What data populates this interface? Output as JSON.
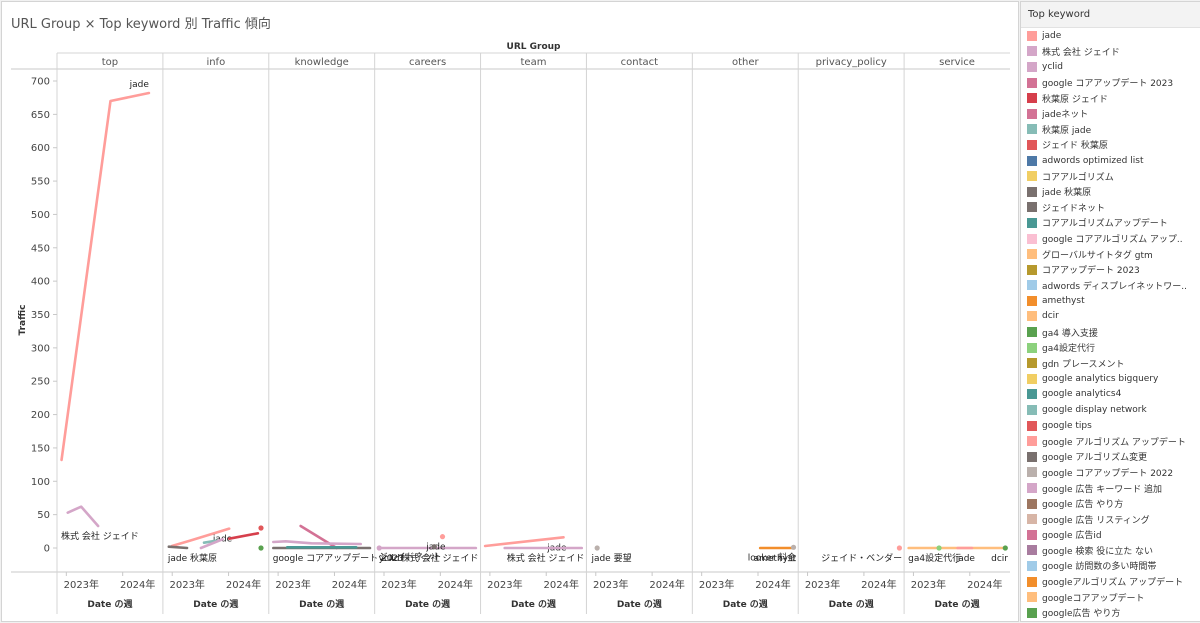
{
  "title": "URL Group × Top keyword 別 Traffic 傾向",
  "legend": {
    "title": "Top keyword",
    "items": [
      {
        "label": "jade",
        "color": "#ff9d9a"
      },
      {
        "label": "株式 会社 ジェイド",
        "color": "#d4a6c8"
      },
      {
        "label": "yclid",
        "color": "#d4a6c8"
      },
      {
        "label": "google コアアップデート 2023",
        "color": "#d37295"
      },
      {
        "label": "秋葉原 ジェイド",
        "color": "#d63f4c"
      },
      {
        "label": "jadeネット",
        "color": "#d37295"
      },
      {
        "label": "秋葉原 jade",
        "color": "#86bcb6"
      },
      {
        "label": "ジェイド 秋葉原",
        "color": "#e15759"
      },
      {
        "label": "adwords optimized list",
        "color": "#4e79a7"
      },
      {
        "label": "コアアルゴリズム",
        "color": "#f1ce63"
      },
      {
        "label": "jade 秋葉原",
        "color": "#79706e"
      },
      {
        "label": "ジェイドネット",
        "color": "#79706e"
      },
      {
        "label": "コアアルゴリズムアップデート",
        "color": "#499894"
      },
      {
        "label": "google コアアルゴリズム アップ..",
        "color": "#fabfd2"
      },
      {
        "label": "グローバルサイトタグ gtm",
        "color": "#ffbe7d"
      },
      {
        "label": "コアアップデート 2023",
        "color": "#b6992d"
      },
      {
        "label": "adwords ディスプレイネットワー..",
        "color": "#a0cbe8"
      },
      {
        "label": "amethyst",
        "color": "#f28e2b"
      },
      {
        "label": "dcir",
        "color": "#ffbe7d"
      },
      {
        "label": "ga4 導入支援",
        "color": "#59a14f"
      },
      {
        "label": "ga4設定代行",
        "color": "#8cd17d"
      },
      {
        "label": "gdn プレースメント",
        "color": "#b6992d"
      },
      {
        "label": "google analytics bigquery",
        "color": "#f1ce63"
      },
      {
        "label": "google analytics4",
        "color": "#499894"
      },
      {
        "label": "google display network",
        "color": "#86bcb6"
      },
      {
        "label": "google tips",
        "color": "#e15759"
      },
      {
        "label": "google アルゴリズム アップデート",
        "color": "#ff9d9a"
      },
      {
        "label": "google アルゴリズム変更",
        "color": "#79706e"
      },
      {
        "label": "google コアアップデート 2022",
        "color": "#bab0ac"
      },
      {
        "label": "google 広告 キーワード 追加",
        "color": "#d4a6c8"
      },
      {
        "label": "google 広告 やり方",
        "color": "#9d7660"
      },
      {
        "label": "google 広告 リスティング",
        "color": "#d7b5a6"
      },
      {
        "label": "google 広告id",
        "color": "#d37295"
      },
      {
        "label": "google 検索 役に立た ない",
        "color": "#a87c9f"
      },
      {
        "label": "google 訪問数の多い時間帯",
        "color": "#a0cbe8"
      },
      {
        "label": "googleアルゴリズム アップデート",
        "color": "#f28e2b"
      },
      {
        "label": "googleコアアップデート",
        "color": "#ffbe7d"
      },
      {
        "label": "google広告 やり方",
        "color": "#59a14f"
      }
    ]
  },
  "chart_data": {
    "type": "line",
    "title": "URL Group × Top keyword 別 Traffic 傾向",
    "column_header": "URL Group",
    "xlabel": "Date の週",
    "ylabel": "Traffic",
    "ylim": [
      0,
      720
    ],
    "yticks": [
      0,
      50,
      100,
      150,
      200,
      250,
      300,
      350,
      400,
      450,
      500,
      550,
      600,
      650,
      700
    ],
    "xticks": [
      {
        "label": "2023年",
        "value": "2023-01-01"
      },
      {
        "label": "2024年",
        "value": "2024-01-01"
      }
    ],
    "xlim": [
      "2022-11-21",
      "2024-08-29"
    ],
    "grid": "vertical panel dividers, no horizontal gridlines",
    "panels": [
      {
        "name": "top",
        "series": [
          {
            "keyword": "jade",
            "color": "#ff9d9a",
            "points": [
              [
                "2022-12-01",
                132
              ],
              [
                "2023-10-14",
                670
              ],
              [
                "2024-06-19",
                682
              ]
            ],
            "label": "jade"
          },
          {
            "keyword": "株式 会社 ジェイド",
            "color": "#d4a6c8",
            "points": [
              [
                "2023-01-10",
                53
              ],
              [
                "2023-04-07",
                62
              ],
              [
                "2023-07-26",
                33
              ]
            ],
            "label": "株式 会社 ジェイド"
          }
        ]
      },
      {
        "name": "info",
        "series": [
          {
            "keyword": "jade",
            "color": "#ff9d9a",
            "points": [
              [
                "2022-12-30",
                3
              ],
              [
                "2023-04-27",
                11
              ],
              [
                "2024-01-05",
                29
              ]
            ],
            "label": "jade"
          },
          {
            "keyword": "jade 秋葉原",
            "color": "#79706e",
            "points": [
              [
                "2022-12-10",
                2
              ],
              [
                "2023-04-07",
                0
              ]
            ],
            "label": "jade 秋葉原"
          },
          {
            "keyword": "秋葉原 jade",
            "color": "#86bcb6",
            "points": [
              [
                "2023-07-26",
                8
              ],
              [
                "2023-10-14",
                11
              ]
            ]
          },
          {
            "keyword": "google 広告 キーワード 追加",
            "color": "#d4a6c8",
            "points": [
              [
                "2023-07-06",
                0
              ],
              [
                "2023-11-23",
                13
              ]
            ]
          },
          {
            "keyword": "秋葉原 ジェイド",
            "color": "#d63f4c",
            "points": [
              [
                "2024-01-05",
                14
              ],
              [
                "2024-07-09",
                22
              ]
            ]
          },
          {
            "keyword": "google tips",
            "color": "#e15759",
            "points": [
              [
                "2024-07-29",
                30
              ]
            ]
          },
          {
            "keyword": "ga4 導入支援",
            "color": "#59a14f",
            "points": [
              [
                "2024-07-29",
                0
              ]
            ]
          }
        ]
      },
      {
        "name": "knowledge",
        "series": [
          {
            "keyword": "google コアアップデート 2023",
            "color": "#d37295",
            "points": [
              [
                "2023-05-27",
                33
              ],
              [
                "2024-01-15",
                0
              ]
            ],
            "label": "google コアアップデート 2023"
          },
          {
            "keyword": "google 広告 キーワード 追加",
            "color": "#d4a6c8",
            "points": [
              [
                "2022-12-01",
                9
              ],
              [
                "2023-02-19",
                10
              ],
              [
                "2023-08-05",
                7
              ],
              [
                "2024-06-19",
                6
              ]
            ]
          },
          {
            "keyword": "google アルゴリズム変更",
            "color": "#79706e",
            "points": [
              [
                "2022-12-01",
                0
              ],
              [
                "2024-08-18",
                0
              ]
            ]
          },
          {
            "keyword": "google analytics4",
            "color": "#499894",
            "points": [
              [
                "2023-03-01",
                1
              ],
              [
                "2024-05-21",
                1
              ]
            ]
          }
        ]
      },
      {
        "name": "careers",
        "series": [
          {
            "keyword": "株式 会社 ジェイド",
            "color": "#d4a6c8",
            "points": [
              [
                "2022-12-01",
                0
              ],
              [
                "2024-08-18",
                0
              ]
            ],
            "label": "株式 会社 ジェイド"
          },
          {
            "keyword": "jade",
            "color": "#ff9d9a",
            "points": [
              [
                "2024-01-15",
                17
              ]
            ],
            "label": "jade"
          },
          {
            "keyword": "ジェイドネット",
            "color": "#79706e",
            "points": [
              [
                "2023-11-23",
                2
              ]
            ],
            "label": "ジェイドネット"
          },
          {
            "keyword": "yclid",
            "color": "#d4a6c8",
            "points": [
              [
                "2022-12-01",
                0
              ]
            ],
            "label": "yclid"
          }
        ]
      },
      {
        "name": "team",
        "series": [
          {
            "keyword": "jade",
            "color": "#ff9d9a",
            "points": [
              [
                "2022-12-01",
                3
              ],
              [
                "2024-04-22",
                16
              ]
            ],
            "label": "jade"
          },
          {
            "keyword": "株式 会社 ジェイド",
            "color": "#d4a6c8",
            "points": [
              [
                "2023-04-07",
                0
              ],
              [
                "2024-08-18",
                0
              ]
            ],
            "label": "株式 会社 ジェイド"
          }
        ]
      },
      {
        "name": "contact",
        "series": [
          {
            "keyword": "jade 要望",
            "color": "#bab0ac",
            "points": [
              [
                "2023-01-10",
                0
              ]
            ],
            "label": "jade 要望"
          }
        ]
      },
      {
        "name": "other",
        "series": [
          {
            "keyword": "amethyst",
            "color": "#f28e2b",
            "points": [
              [
                "2024-01-15",
                0
              ],
              [
                "2024-08-18",
                0
              ]
            ],
            "label": "amethyst"
          },
          {
            "keyword": "looker 料金",
            "color": "#bab0ac",
            "points": [
              [
                "2024-08-18",
                1
              ]
            ],
            "label": "looker 料金"
          }
        ]
      },
      {
        "name": "privacy_policy",
        "series": [
          {
            "keyword": "ジェイド・ベンダー",
            "color": "#ff9d9a",
            "points": [
              [
                "2024-08-18",
                0
              ]
            ],
            "label": "ジェイド・ベンダー"
          }
        ]
      },
      {
        "name": "service",
        "series": [
          {
            "keyword": "dcir",
            "color": "#ffbe7d",
            "points": [
              [
                "2022-12-01",
                0
              ],
              [
                "2024-08-18",
                0
              ]
            ],
            "label": "dcir"
          },
          {
            "keyword": "jade",
            "color": "#ff9d9a",
            "points": [
              [
                "2023-10-14",
                0
              ],
              [
                "2024-01-15",
                0
              ]
            ],
            "label": "jade"
          },
          {
            "keyword": "ga4設定代行",
            "color": "#8cd17d",
            "points": [
              [
                "2023-06-16",
                0
              ]
            ],
            "label": "ga4設定代行"
          },
          {
            "keyword": "ga4 導入支援",
            "color": "#59a14f",
            "points": [
              [
                "2024-08-18",
                0
              ]
            ]
          }
        ]
      }
    ]
  }
}
